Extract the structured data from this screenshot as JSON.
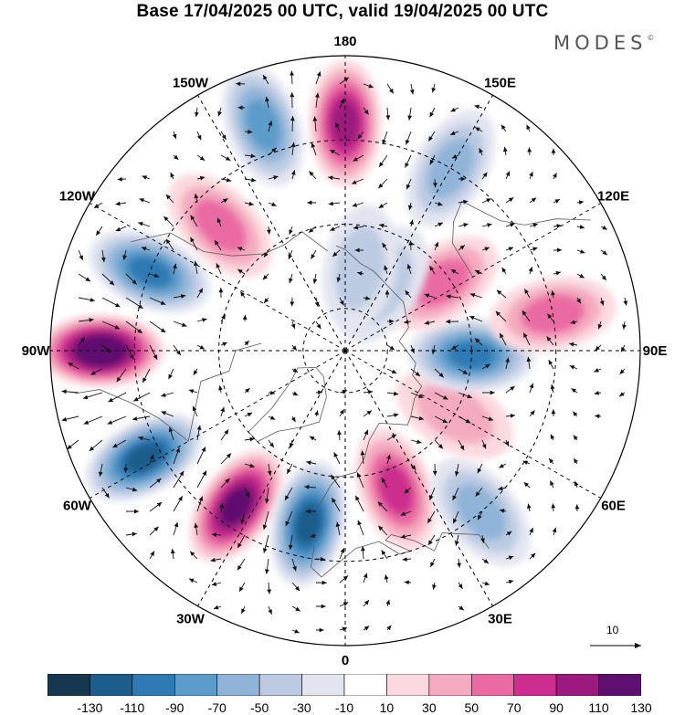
{
  "title": "Base 17/04/2025 00 UTC, valid 19/04/2025 00 UTC",
  "brand": {
    "name": "MODES",
    "mark": "©"
  },
  "longitude_labels": [
    {
      "text": "180",
      "lon": 180
    },
    {
      "text": "150E",
      "lon": 150
    },
    {
      "text": "120E",
      "lon": 120
    },
    {
      "text": "90E",
      "lon": 90
    },
    {
      "text": "60E",
      "lon": 60
    },
    {
      "text": "30E",
      "lon": 30
    },
    {
      "text": "0",
      "lon": 0
    },
    {
      "text": "30W",
      "lon": -30
    },
    {
      "text": "60W",
      "lon": -60
    },
    {
      "text": "90W",
      "lon": -90
    },
    {
      "text": "120W",
      "lon": -120
    },
    {
      "text": "150W",
      "lon": -150
    }
  ],
  "projection": "north polar stereographic",
  "latitude_circles_deg": [
    80,
    60,
    40
  ],
  "reference_vector": {
    "label": "10"
  },
  "colorbar": {
    "ticks": [
      "-130",
      "-110",
      "-90",
      "-70",
      "-50",
      "-30",
      "-10",
      "10",
      "30",
      "50",
      "70",
      "90",
      "110",
      "130"
    ],
    "colors": [
      "#15374f",
      "#1d5d8c",
      "#2f7ab4",
      "#5b9ccb",
      "#8fb4d8",
      "#bccbe2",
      "#e2e4f0",
      "#ffffff",
      "#fbd9df",
      "#f4aabf",
      "#ea6aa3",
      "#cc2d8e",
      "#9c1a7e",
      "#5e1070"
    ]
  },
  "anomaly_cells": [
    {
      "lon": 180,
      "lat": 36,
      "value": 80
    },
    {
      "lon": -160,
      "lat": 33,
      "value": -60
    },
    {
      "lon": -135,
      "lat": 48,
      "value": 40
    },
    {
      "lon": -112,
      "lat": 40,
      "value": -95
    },
    {
      "lon": -90,
      "lat": 32,
      "value": 120
    },
    {
      "lon": -62,
      "lat": 36,
      "value": -100
    },
    {
      "lon": -35,
      "lat": 45,
      "value": 100
    },
    {
      "lon": -12,
      "lat": 48,
      "value": -100
    },
    {
      "lon": 20,
      "lat": 55,
      "value": 75
    },
    {
      "lon": 40,
      "lat": 40,
      "value": -40
    },
    {
      "lon": 60,
      "lat": 60,
      "value": 35
    },
    {
      "lon": 88,
      "lat": 60,
      "value": -95
    },
    {
      "lon": 100,
      "lat": 40,
      "value": 40
    },
    {
      "lon": 125,
      "lat": 62,
      "value": 45
    },
    {
      "lon": 150,
      "lat": 72,
      "value": -35
    },
    {
      "lon": 150,
      "lat": 40,
      "value": -40
    },
    {
      "lon": 170,
      "lat": 70,
      "value": -20
    }
  ]
}
